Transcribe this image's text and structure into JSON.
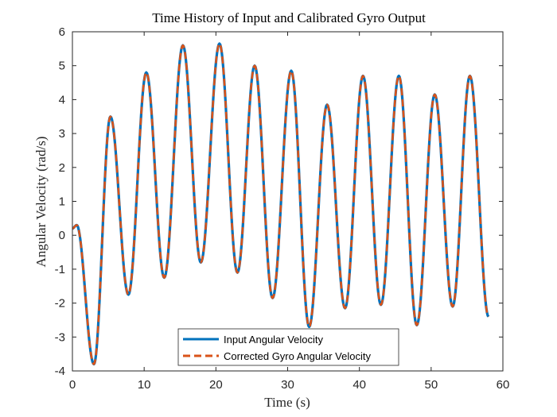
{
  "chart_data": {
    "type": "line",
    "title": "Time History of Input and Calibrated Gyro Output",
    "xlabel": "Time (s)",
    "ylabel": "Angular Velocity (rad/s)",
    "xlim": [
      0,
      60
    ],
    "ylim": [
      -4,
      6
    ],
    "xticks": [
      0,
      10,
      20,
      30,
      40,
      50,
      60
    ],
    "yticks": [
      -4,
      -3,
      -2,
      -1,
      0,
      1,
      2,
      3,
      4,
      5,
      6
    ],
    "grid": false,
    "legend_position": "bottom-center",
    "extrema": [
      [
        0.0,
        0.2
      ],
      [
        0.6,
        0.3
      ],
      [
        3.0,
        -3.8
      ],
      [
        5.3,
        3.5
      ],
      [
        7.8,
        -1.75
      ],
      [
        10.3,
        4.8
      ],
      [
        12.8,
        -1.25
      ],
      [
        15.4,
        5.6
      ],
      [
        17.9,
        -0.8
      ],
      [
        20.5,
        5.65
      ],
      [
        23.0,
        -1.1
      ],
      [
        25.4,
        5.0
      ],
      [
        27.9,
        -1.85
      ],
      [
        30.5,
        4.85
      ],
      [
        33.0,
        -2.7
      ],
      [
        35.5,
        3.85
      ],
      [
        38.0,
        -2.15
      ],
      [
        40.5,
        4.7
      ],
      [
        43.0,
        -2.05
      ],
      [
        45.5,
        4.7
      ],
      [
        48.0,
        -2.65
      ],
      [
        50.5,
        4.15
      ],
      [
        53.0,
        -2.1
      ],
      [
        55.4,
        4.7
      ],
      [
        58.0,
        -2.4
      ]
    ],
    "series": [
      {
        "name": "Input Angular Velocity",
        "color": "#0072BD",
        "style": "solid"
      },
      {
        "name": "Corrected Gyro Angular Velocity",
        "color": "#D95319",
        "style": "dashed"
      }
    ]
  }
}
